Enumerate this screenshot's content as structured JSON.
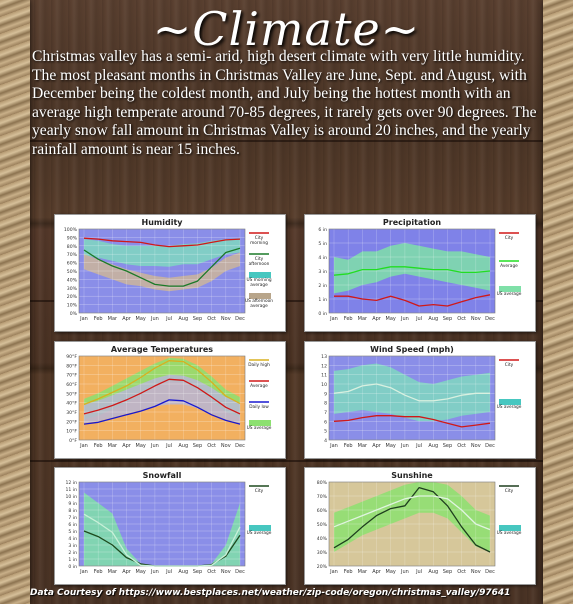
{
  "title": "~Climate~",
  "intro": "Christmas valley has a semi- arid, high desert climate with very little humidity. The most pleasant months in Christmas Valley are June, Sept. and August, with December being the coldest month, and July being the hottest month with an average high temperate around 70-85 degrees, it rarely gets over 90 degrees. The yearly snow fall amount in Christmas Valley is around 20 inches, and the yearly rainfall  amount is near 15 inches.",
  "footer": "Data Courtesy of  https://www.bestplaces.net/weather/zip-code/oregon/christmas_valley/97641",
  "months": [
    "Jan",
    "Feb",
    "Mar",
    "Apr",
    "May",
    "Jun",
    "Jul",
    "Aug",
    "Sep",
    "Oct",
    "Nov",
    "Dec"
  ],
  "chart_data": [
    {
      "type": "line",
      "title": "Humidity",
      "bg": "#8a8ee8",
      "ylim": [
        0,
        100
      ],
      "yticks": [
        "0%",
        "10%",
        "20%",
        "30%",
        "40%",
        "50%",
        "60%",
        "70%",
        "80%",
        "90%",
        "100%"
      ],
      "bands": [
        {
          "color": "#7fd8c0",
          "lower": [
            68,
            66,
            62,
            58,
            56,
            56,
            55,
            58,
            58,
            64,
            70,
            72
          ],
          "upper": [
            88,
            86,
            82,
            80,
            80,
            80,
            80,
            82,
            83,
            86,
            88,
            89
          ]
        },
        {
          "color": "#cbb59a",
          "lower": [
            52,
            46,
            40,
            34,
            32,
            28,
            26,
            28,
            30,
            38,
            50,
            56
          ],
          "upper": [
            70,
            64,
            58,
            52,
            48,
            44,
            42,
            44,
            46,
            54,
            66,
            72
          ]
        }
      ],
      "series": [
        {
          "name": "City morning",
          "color": "#d01818",
          "values": [
            89,
            88,
            86,
            85,
            84,
            81,
            79,
            80,
            81,
            84,
            87,
            88
          ]
        },
        {
          "name": "City afternoon",
          "color": "#1b7a28",
          "values": [
            75,
            64,
            56,
            50,
            42,
            34,
            32,
            32,
            38,
            55,
            72,
            77
          ]
        }
      ],
      "legend": [
        {
          "kind": "line",
          "color": "#d01818",
          "label": [
            "City",
            "morning"
          ]
        },
        {
          "kind": "line",
          "color": "#1b7a28",
          "label": [
            "City",
            "afternoon"
          ]
        },
        {
          "kind": "box",
          "color": "#47c7c0",
          "label": [
            "US morning",
            "average"
          ]
        },
        {
          "kind": "box",
          "color": "#b8a58a",
          "label": [
            "US afternoon",
            "average"
          ]
        }
      ]
    },
    {
      "type": "line",
      "title": "Precipitation",
      "bg": "#7f82e8",
      "ylim": [
        0,
        6
      ],
      "yticks": [
        "0 in",
        "1 in",
        "2 in",
        "3 in",
        "4 in",
        "5 in",
        "6 in"
      ],
      "bands": [
        {
          "color": "#7fe0a8",
          "lower": [
            1.4,
            1.6,
            2.0,
            2.2,
            2.6,
            2.8,
            2.6,
            2.4,
            2.2,
            2.0,
            1.8,
            1.6
          ],
          "upper": [
            4.0,
            3.8,
            4.4,
            4.4,
            4.8,
            5.0,
            4.8,
            4.6,
            4.4,
            4.4,
            4.2,
            4.0
          ]
        }
      ],
      "series": [
        {
          "name": "City",
          "color": "#d01818",
          "values": [
            1.2,
            1.2,
            1.0,
            0.9,
            1.2,
            0.9,
            0.5,
            0.6,
            0.5,
            0.8,
            1.1,
            1.3
          ]
        },
        {
          "name": "Average",
          "color": "#22dd22",
          "values": [
            2.7,
            2.8,
            3.1,
            3.1,
            3.3,
            3.3,
            3.2,
            3.1,
            3.1,
            2.9,
            2.9,
            3.0
          ]
        }
      ],
      "legend": [
        {
          "kind": "line",
          "color": "#d01818",
          "label": [
            "City"
          ]
        },
        {
          "kind": "line",
          "color": "#22dd22",
          "label": [
            "Average"
          ]
        },
        {
          "kind": "box",
          "color": "#7fe0a8",
          "label": [
            "US average"
          ]
        }
      ]
    },
    {
      "type": "line",
      "title": "Average Temperatures",
      "bg": "#f2b060",
      "ylim": [
        0,
        90
      ],
      "yticks": [
        "0°F",
        "10°F",
        "20°F",
        "30°F",
        "40°F",
        "50°F",
        "60°F",
        "70°F",
        "80°F",
        "90°F"
      ],
      "bands": [
        {
          "color": "#8ce070",
          "lower": [
            22,
            26,
            33,
            40,
            48,
            57,
            63,
            62,
            54,
            42,
            30,
            24
          ],
          "upper": [
            44,
            50,
            58,
            66,
            74,
            82,
            88,
            87,
            80,
            68,
            54,
            46
          ]
        },
        {
          "color": "#b7b6d6",
          "lower": [
            18,
            20,
            24,
            28,
            32,
            36,
            38,
            38,
            34,
            28,
            22,
            18
          ],
          "upper": [
            38,
            42,
            48,
            54,
            60,
            66,
            70,
            69,
            64,
            56,
            46,
            40
          ]
        }
      ],
      "series": [
        {
          "name": "Daily high",
          "color": "#d8b020",
          "values": [
            38,
            44,
            51,
            58,
            67,
            77,
            85,
            84,
            75,
            62,
            47,
            39
          ]
        },
        {
          "name": "Average",
          "color": "#d01818",
          "values": [
            28,
            32,
            37,
            43,
            50,
            58,
            65,
            64,
            56,
            46,
            35,
            28
          ]
        },
        {
          "name": "Daily low",
          "color": "#1818d0",
          "values": [
            17,
            19,
            23,
            27,
            31,
            36,
            43,
            42,
            35,
            27,
            21,
            17
          ]
        }
      ],
      "legend": [
        {
          "kind": "line",
          "color": "#d8b020",
          "label": [
            "Daily high"
          ]
        },
        {
          "kind": "line",
          "color": "#d01818",
          "label": [
            "Average"
          ]
        },
        {
          "kind": "line",
          "color": "#1818d0",
          "label": [
            "Daily low"
          ]
        },
        {
          "kind": "box",
          "color": "#8ce070",
          "label": [
            "US average"
          ]
        }
      ]
    },
    {
      "type": "line",
      "title": "Wind Speed (mph)",
      "bg": "#8a8ee8",
      "ylim": [
        4,
        13
      ],
      "yticks": [
        "4",
        "5",
        "6",
        "7",
        "8",
        "9",
        "10",
        "11",
        "12",
        "13"
      ],
      "bands": [
        {
          "color": "#7fd8c0",
          "lower": [
            6.8,
            7.0,
            7.2,
            7.0,
            6.8,
            6.4,
            6.0,
            6.0,
            6.2,
            6.6,
            6.8,
            7.0
          ],
          "upper": [
            11.4,
            11.6,
            12.0,
            12.2,
            11.8,
            11.0,
            10.2,
            10.0,
            10.4,
            10.8,
            11.0,
            11.2
          ]
        }
      ],
      "series": [
        {
          "name": "City",
          "color": "#d01818",
          "values": [
            6.0,
            6.1,
            6.4,
            6.6,
            6.6,
            6.5,
            6.5,
            6.2,
            5.8,
            5.4,
            5.6,
            5.8
          ]
        },
        {
          "name": "US average",
          "color": "#d8f0e0",
          "values": [
            9.0,
            9.2,
            9.8,
            10.0,
            9.6,
            8.8,
            8.2,
            8.2,
            8.4,
            8.8,
            9.0,
            9.0
          ]
        }
      ],
      "legend": [
        {
          "kind": "line",
          "color": "#d01818",
          "label": [
            "City"
          ]
        },
        {
          "kind": "box",
          "color": "#47c7c0",
          "label": [
            "US average"
          ]
        }
      ]
    },
    {
      "type": "line",
      "title": "Snowfall",
      "bg": "#8a8ee8",
      "ylim": [
        0,
        12
      ],
      "yticks": [
        "0 in",
        "1 in",
        "2 in",
        "3 in",
        "4 in",
        "5 in",
        "6 in",
        "7 in",
        "8 in",
        "9 in",
        "10 in",
        "11 in",
        "12 in"
      ],
      "bands": [
        {
          "color": "#7fe0a8",
          "lower": [
            0,
            0,
            0,
            0,
            0,
            0,
            0,
            0,
            0,
            0,
            0,
            0
          ],
          "upper": [
            10.5,
            9.0,
            7.5,
            2.5,
            0.3,
            0,
            0,
            0,
            0,
            0.3,
            3.0,
            9.0
          ]
        }
      ],
      "series": [
        {
          "name": "City",
          "color": "#1e4a1e",
          "values": [
            5.0,
            4.2,
            3.0,
            1.2,
            0.3,
            0,
            0,
            0,
            0,
            0.2,
            1.4,
            4.4
          ]
        },
        {
          "name": "US average",
          "color": "#c8f0d8",
          "values": [
            7.4,
            6.2,
            4.8,
            1.6,
            0.1,
            0,
            0,
            0,
            0,
            0.1,
            1.6,
            5.6
          ]
        }
      ],
      "legend": [
        {
          "kind": "line",
          "color": "#1e4a1e",
          "label": [
            "City"
          ]
        },
        {
          "kind": "box",
          "color": "#47c7c0",
          "label": [
            "US average"
          ]
        }
      ]
    },
    {
      "type": "line",
      "title": "Sunshine",
      "bg": "#d6c79a",
      "ylim": [
        20,
        80
      ],
      "yticks": [
        "20%",
        "30%",
        "40%",
        "50%",
        "60%",
        "70%",
        "80%"
      ],
      "bands": [
        {
          "color": "#8ce070",
          "lower": [
            30,
            36,
            42,
            46,
            50,
            54,
            58,
            58,
            54,
            44,
            34,
            30
          ],
          "upper": [
            58,
            62,
            66,
            70,
            74,
            78,
            80,
            80,
            78,
            70,
            60,
            56
          ]
        }
      ],
      "series": [
        {
          "name": "City",
          "color": "#1e3e1e",
          "values": [
            33,
            39,
            48,
            56,
            61,
            63,
            76,
            73,
            63,
            48,
            35,
            30
          ]
        },
        {
          "name": "US average",
          "color": "#e0f4e0",
          "values": [
            48,
            52,
            56,
            60,
            64,
            68,
            70,
            70,
            68,
            60,
            50,
            46
          ]
        }
      ],
      "legend": [
        {
          "kind": "line",
          "color": "#1e3e1e",
          "label": [
            "City"
          ]
        },
        {
          "kind": "box",
          "color": "#47c7c0",
          "label": [
            "US average"
          ]
        }
      ]
    }
  ]
}
